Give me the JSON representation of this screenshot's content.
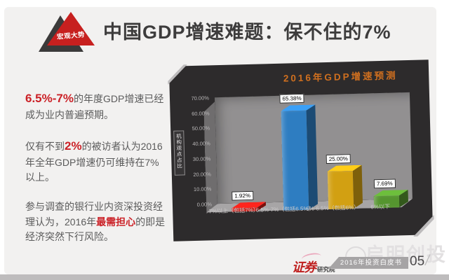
{
  "slide": {
    "badge": "宏观大势",
    "title": "中国GDP增速难题：保不住的7%",
    "paragraphs": [
      {
        "pre": "",
        "highlight": "6.5%-7%",
        "rest": "的年度GDP增速已经成为业内普遍预期。"
      },
      {
        "pre": "仅有不到",
        "highlight": "2%",
        "rest": "的被访者认为2016年全年GDP增速仍可维持在7%以上。"
      },
      {
        "pre": "参与调查的银行业内资深投资经理认为，2016年",
        "highlight": "最需担心",
        "rest": "的即是经济突然下行风险。"
      }
    ]
  },
  "chart_data": {
    "type": "bar",
    "style": "3d-column",
    "title": "2016年GDP增速预测",
    "title_color": "#cf6f1f",
    "ylabel": "机构观点占比",
    "categories": [
      "7%以上（包括7%）",
      "6.5%-7%（包括6.5%）",
      "6%-6.5%（包括6%）",
      "6%以下"
    ],
    "values": [
      1.92,
      65.38,
      25.0,
      7.69
    ],
    "labels": [
      "1.92%",
      "65.38%",
      "25.00%",
      "7.69%"
    ],
    "bar_colors": [
      "#c81d17",
      "#2e7dc1",
      "#d2a012",
      "#55952f"
    ],
    "yticks": [
      "70.00%",
      "60.00%",
      "50.00%",
      "40.00%",
      "30.00%",
      "20.00%",
      "10.00%",
      "0.00%"
    ],
    "ylim": [
      0,
      70
    ],
    "grid": false,
    "legend": "none"
  },
  "footer": {
    "logo_main": "证券",
    "logo_sub": "研究院",
    "banner": "2016年投资白皮书",
    "page_number": "05",
    "page_slash": "/",
    "watermark": "启明创投"
  }
}
